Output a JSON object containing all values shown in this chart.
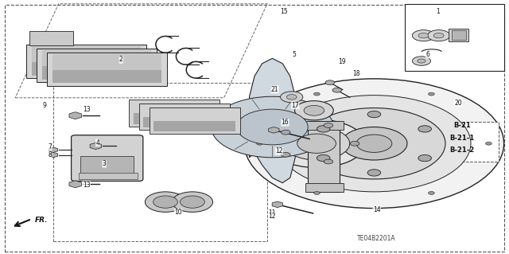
{
  "title": "",
  "bg_color": "#ffffff",
  "border_color": "#000000",
  "fig_width": 6.4,
  "fig_height": 3.19,
  "ref_codes": [
    "B-21",
    "B-21-1",
    "B-21-2"
  ],
  "diagram_id": "TE04B2201A",
  "lc": "#222222",
  "dashed_color": "#666666"
}
